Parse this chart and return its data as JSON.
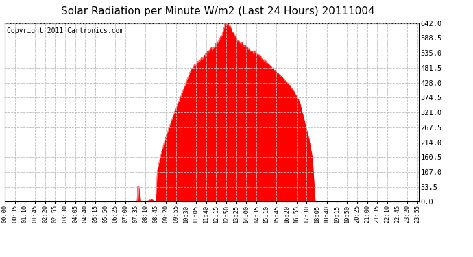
{
  "title": "Solar Radiation per Minute W/m2 (Last 24 Hours) 20111004",
  "copyright_text": "Copyright 2011 Cartronics.com",
  "background_color": "#ffffff",
  "plot_bg_color": "#ffffff",
  "fill_color": "#ff0000",
  "line_color": "#ff0000",
  "dashed_line_color": "#ff0000",
  "grid_color": "#bbbbbb",
  "title_fontsize": 11,
  "copyright_fontsize": 7,
  "yticks": [
    0.0,
    53.5,
    107.0,
    160.5,
    214.0,
    267.5,
    321.0,
    374.5,
    428.0,
    481.5,
    535.0,
    588.5,
    642.0
  ],
  "ymax": 642.0,
  "ymin": 0.0,
  "num_minutes": 1440,
  "x_tick_labels": [
    "00:00",
    "00:35",
    "01:10",
    "01:45",
    "02:20",
    "02:55",
    "03:30",
    "04:05",
    "04:40",
    "05:15",
    "05:50",
    "06:25",
    "07:00",
    "07:35",
    "08:10",
    "08:45",
    "09:20",
    "09:55",
    "10:30",
    "11:05",
    "11:40",
    "12:15",
    "12:50",
    "13:25",
    "14:00",
    "14:35",
    "15:10",
    "15:45",
    "16:20",
    "16:55",
    "17:30",
    "18:05",
    "18:40",
    "19:15",
    "19:50",
    "20:25",
    "21:00",
    "21:35",
    "22:10",
    "22:45",
    "23:20",
    "23:55"
  ],
  "x_tick_interval": 35,
  "key_points_x": [
    0,
    455,
    460,
    462,
    464,
    467,
    470,
    475,
    490,
    500,
    510,
    525,
    530,
    540,
    555,
    570,
    590,
    610,
    630,
    650,
    670,
    690,
    710,
    730,
    745,
    755,
    760,
    765,
    768,
    772,
    775,
    780,
    785,
    790,
    795,
    800,
    810,
    820,
    835,
    850,
    870,
    900,
    930,
    960,
    990,
    1010,
    1025,
    1035,
    1045,
    1055,
    1060,
    1070,
    1080,
    1439
  ],
  "key_points_y": [
    0,
    0,
    5,
    55,
    5,
    55,
    5,
    0,
    0,
    5,
    10,
    0,
    107,
    160,
    214,
    267,
    321,
    374,
    428,
    481,
    500,
    520,
    540,
    560,
    580,
    600,
    620,
    635,
    642,
    638,
    640,
    635,
    628,
    615,
    605,
    595,
    580,
    570,
    560,
    548,
    535,
    510,
    481,
    450,
    420,
    390,
    360,
    320,
    280,
    240,
    214,
    160,
    0,
    0
  ]
}
